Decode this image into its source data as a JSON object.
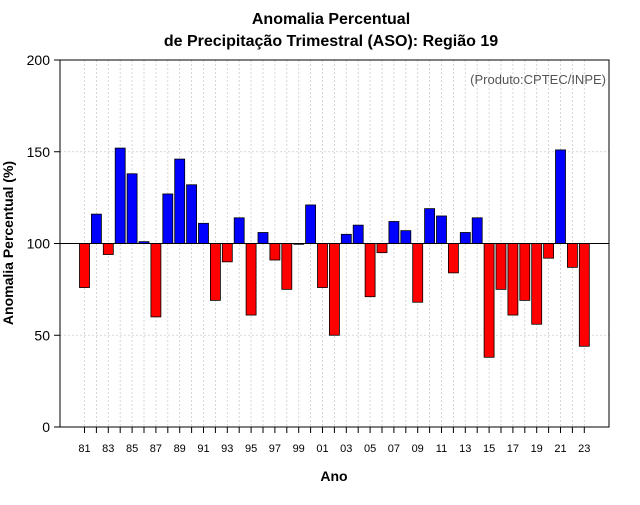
{
  "chart_data": {
    "type": "bar",
    "title_line1": "Anomalia Percentual",
    "title_line2": "de Precipitação Trimestral (ASO): Região 19",
    "xlabel": "Ano",
    "ylabel": "Anomalia Percentual (%)",
    "source": "(Produto:CPTEC/INPE)",
    "baseline": 100,
    "ylim": [
      0,
      200
    ],
    "yticks": [
      0,
      50,
      100,
      150,
      200
    ],
    "grid": true,
    "colors": {
      "above": "#0000ff",
      "below": "#ff0000",
      "edge": "#000000",
      "grid": "#cccccc"
    },
    "categories": [
      "81",
      "82",
      "83",
      "84",
      "85",
      "86",
      "87",
      "88",
      "89",
      "90",
      "91",
      "92",
      "93",
      "94",
      "95",
      "96",
      "97",
      "98",
      "99",
      "00",
      "01",
      "02",
      "03",
      "04",
      "05",
      "06",
      "07",
      "08",
      "09",
      "10",
      "11",
      "12",
      "13",
      "14",
      "15",
      "16",
      "17",
      "18",
      "19",
      "20",
      "21",
      "22",
      "23"
    ],
    "tick_labels": [
      "81",
      "83",
      "85",
      "87",
      "89",
      "91",
      "93",
      "95",
      "97",
      "99",
      "01",
      "03",
      "05",
      "07",
      "09",
      "11",
      "13",
      "15",
      "17",
      "19",
      "21",
      "23"
    ],
    "values": [
      76,
      116,
      94,
      152,
      138,
      101,
      60,
      127,
      146,
      132,
      111,
      69,
      90,
      114,
      61,
      106,
      91,
      75,
      100,
      121,
      76,
      50,
      105,
      110,
      71,
      95,
      112,
      107,
      68,
      119,
      115,
      84,
      106,
      114,
      38,
      75,
      61,
      69,
      56,
      92,
      151,
      87,
      44
    ]
  }
}
